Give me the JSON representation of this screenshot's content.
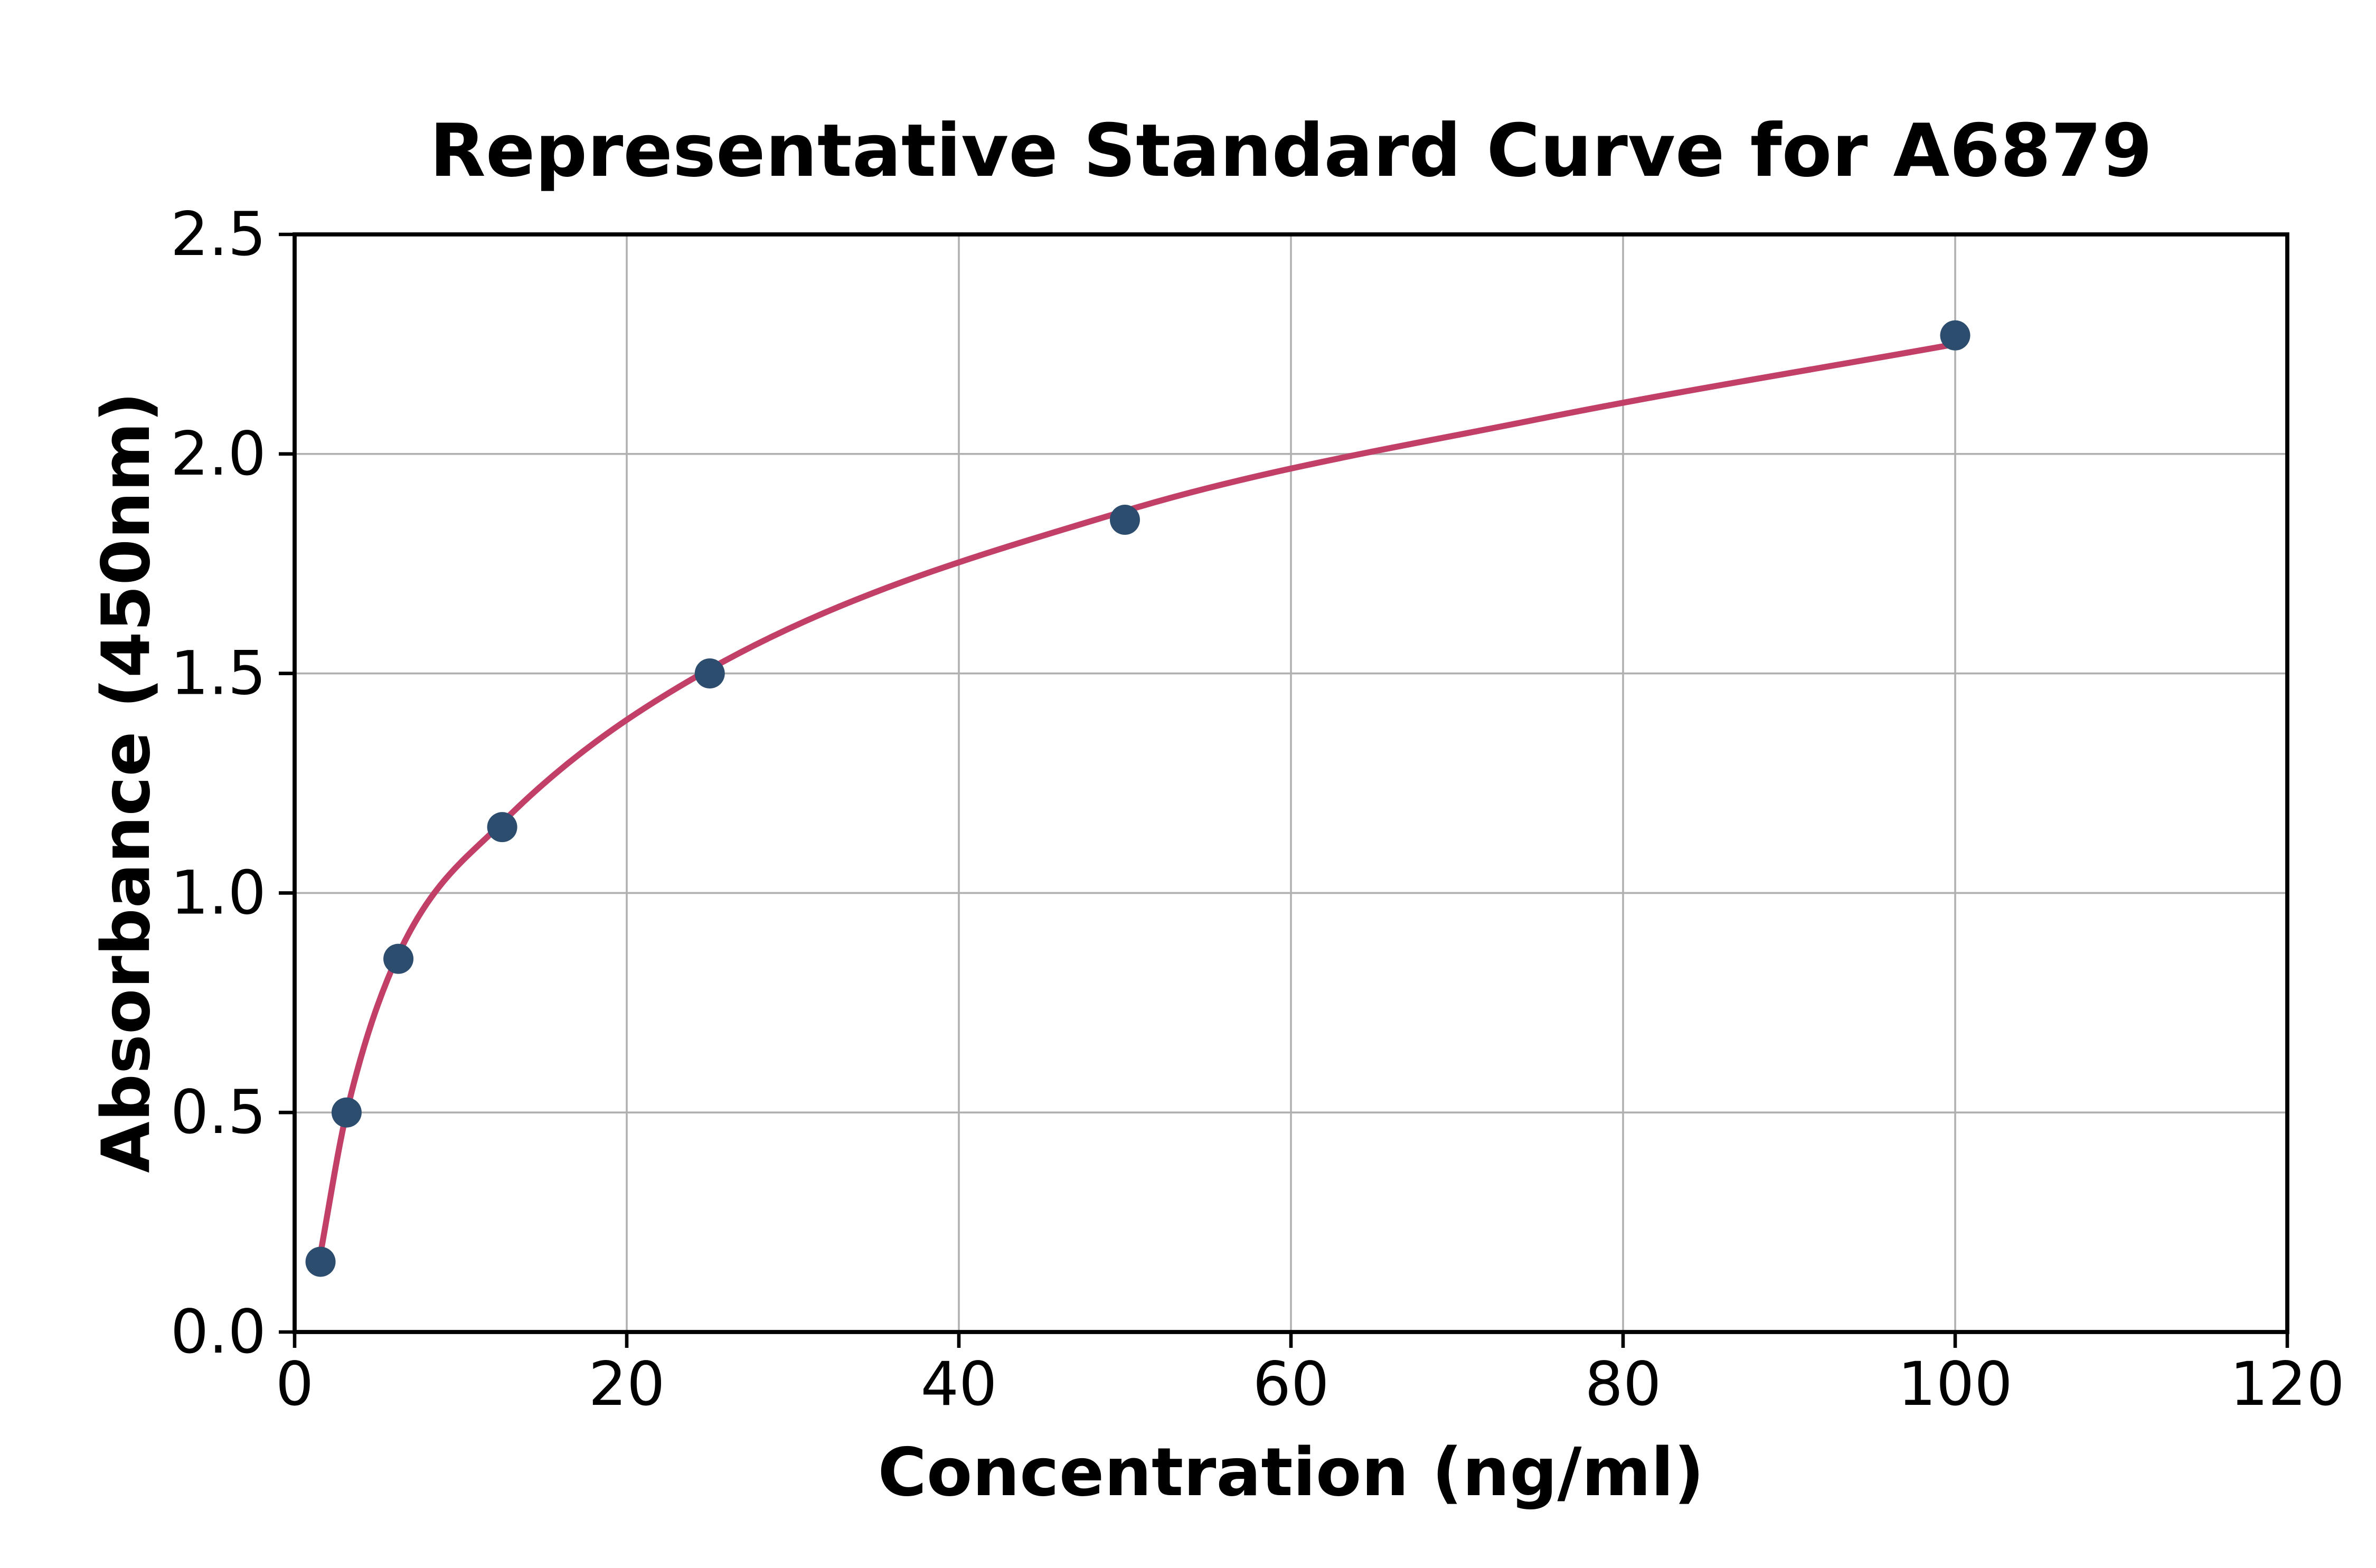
{
  "figure": {
    "background": "#ffffff"
  },
  "chart_data": {
    "type": "scatter",
    "title": "Representative Standard Curve for A6879",
    "xlabel": "Concentration (ng/ml)",
    "ylabel": "Absorbance (450nm)",
    "xlim": [
      0,
      120
    ],
    "ylim": [
      0,
      2.5
    ],
    "xticks": {
      "values": [
        0,
        20,
        40,
        60,
        80,
        100,
        120
      ],
      "labels": [
        "0",
        "20",
        "40",
        "60",
        "80",
        "100",
        "120"
      ]
    },
    "yticks": {
      "values": [
        0,
        0.5,
        1.0,
        1.5,
        2.0,
        2.5
      ],
      "labels": [
        "0.0",
        "0.5",
        "1.0",
        "1.5",
        "2.0",
        "2.5"
      ]
    },
    "grid": true,
    "legend_position": "none",
    "colors": {
      "marker": "#2d4d6e",
      "fit_line": "#c23f68",
      "grid": "#b0b0b0",
      "axis": "#000000"
    },
    "series": [
      {
        "name": "standard-points",
        "type": "scatter",
        "x": [
          1.56,
          3.13,
          6.25,
          12.5,
          25,
          50,
          100
        ],
        "y": [
          0.16,
          0.5,
          0.85,
          1.15,
          1.5,
          1.85,
          2.27
        ]
      },
      {
        "name": "fit-curve",
        "type": "line",
        "x": [
          1.56,
          3.13,
          6.25,
          12.5,
          25,
          50,
          75,
          100
        ],
        "y": [
          0.18,
          0.5,
          0.86,
          1.16,
          1.51,
          1.87,
          2.08,
          2.25
        ]
      }
    ]
  }
}
